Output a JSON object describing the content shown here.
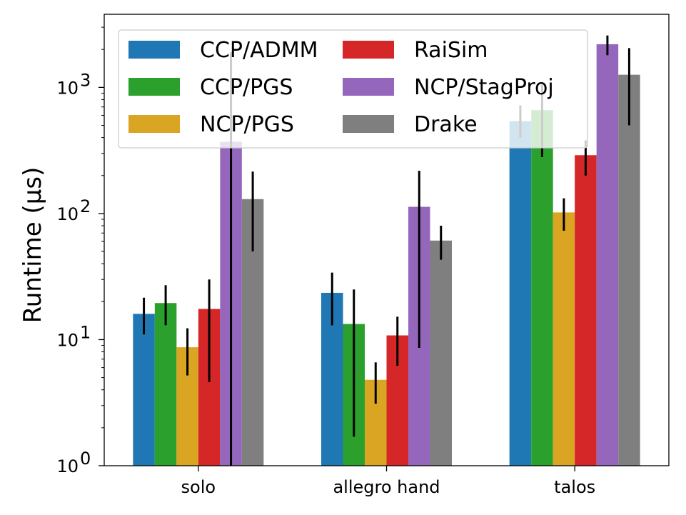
{
  "chart_data": {
    "type": "bar",
    "ylabel": "Runtime (μs)",
    "yscale": "log",
    "ylim": [
      1,
      3800
    ],
    "y_ticks": [
      {
        "value": 1,
        "base": "10",
        "exp": "0"
      },
      {
        "value": 10,
        "base": "10",
        "exp": "1"
      },
      {
        "value": 100,
        "base": "10",
        "exp": "2"
      },
      {
        "value": 1000,
        "base": "10",
        "exp": "3"
      }
    ],
    "categories": [
      "solo",
      "allegro hand",
      "talos"
    ],
    "legend_position": "top, upper-left, 3 rows x 2 columns",
    "grid": false,
    "series": [
      {
        "name": "CCP/ADMM",
        "color": "#1f77b4",
        "values": [
          16,
          23.5,
          540
        ],
        "err_low": [
          11,
          13,
          400
        ],
        "err_high": [
          21.5,
          34,
          720
        ]
      },
      {
        "name": "CCP/PGS",
        "color": "#2ca02c",
        "values": [
          19.5,
          13.3,
          660
        ],
        "err_low": [
          13,
          1.7,
          280
        ],
        "err_high": [
          27,
          25,
          1050
        ]
      },
      {
        "name": "NCP/PGS",
        "color": "#dba524",
        "values": [
          8.7,
          4.8,
          102
        ],
        "err_low": [
          5.2,
          3.1,
          73
        ],
        "err_high": [
          12.3,
          6.6,
          132
        ]
      },
      {
        "name": "RaiSim",
        "color": "#d62728",
        "values": [
          17.5,
          10.8,
          290
        ],
        "err_low": [
          4.6,
          6.2,
          200
        ],
        "err_high": [
          30,
          15.2,
          380
        ]
      },
      {
        "name": "NCP/StagProj",
        "color": "#9467bd",
        "values": [
          370,
          113,
          2200
        ],
        "err_low": [
          1,
          8.6,
          1800
        ],
        "err_high": [
          1900,
          218,
          2580
        ]
      },
      {
        "name": "Drake",
        "color": "#7f7f7f",
        "values": [
          130,
          61,
          1260
        ],
        "err_low": [
          50,
          43,
          500
        ],
        "err_high": [
          215,
          80,
          2050
        ]
      }
    ]
  }
}
